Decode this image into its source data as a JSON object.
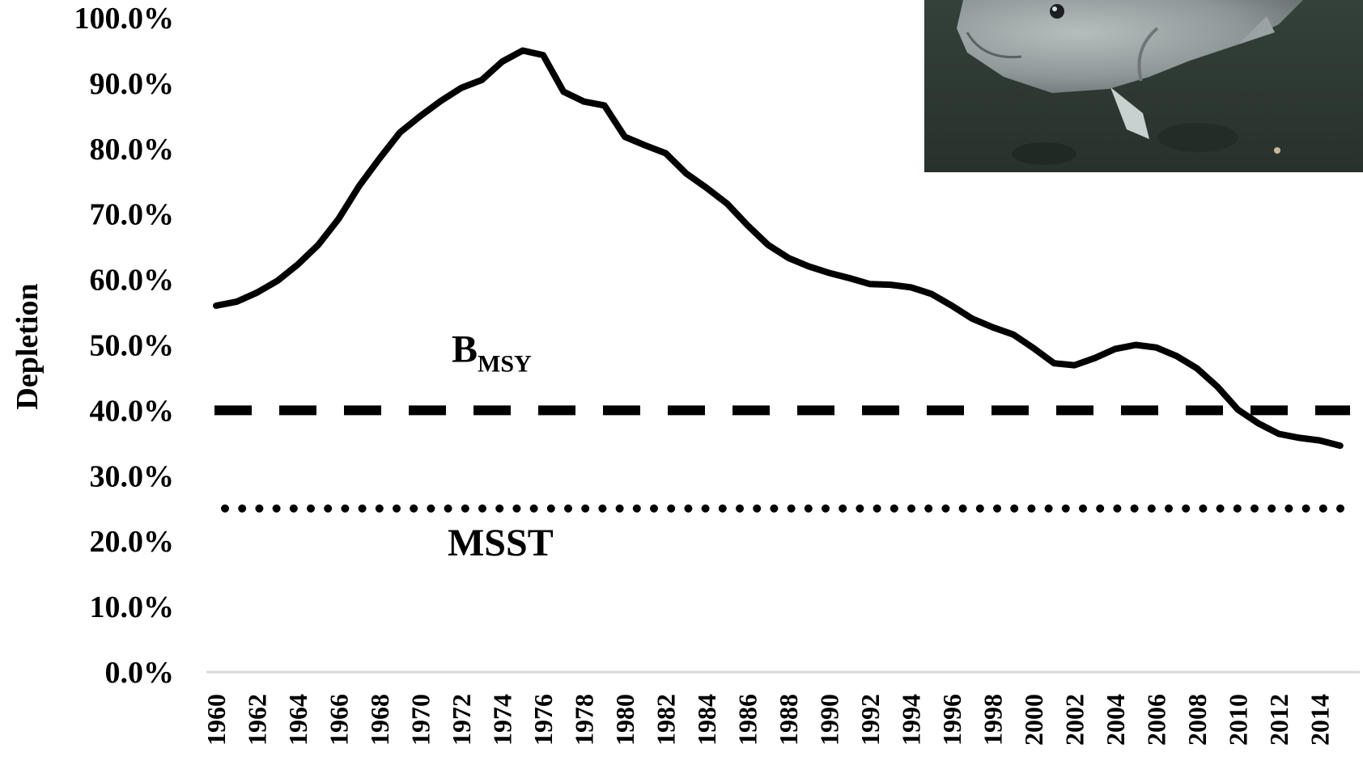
{
  "chart_data": {
    "type": "line",
    "ylabel": "Depletion",
    "xlabel": "",
    "ylim": [
      0,
      100
    ],
    "yticks": [
      "0.0%",
      "10.0%",
      "20.0%",
      "30.0%",
      "40.0%",
      "50.0%",
      "60.0%",
      "70.0%",
      "80.0%",
      "90.0%",
      "100.0%"
    ],
    "xticks": [
      "1960",
      "1962",
      "1964",
      "1966",
      "1968",
      "1970",
      "1972",
      "1974",
      "1976",
      "1978",
      "1980",
      "1982",
      "1984",
      "1986",
      "1988",
      "1990",
      "1992",
      "1994",
      "1996",
      "1998",
      "2000",
      "2002",
      "2004",
      "2006",
      "2008",
      "2010",
      "2012",
      "2014"
    ],
    "grid": false,
    "series": [
      {
        "x": [
          1960,
          1961,
          1962,
          1963,
          1964,
          1965,
          1966,
          1967,
          1968,
          1969,
          1970,
          1971,
          1972,
          1973,
          1974,
          1975,
          1976,
          1977,
          1978,
          1979,
          1980,
          1981,
          1982,
          1983,
          1984,
          1985,
          1986,
          1987,
          1988,
          1989,
          1990,
          1991,
          1992,
          1993,
          1994,
          1995,
          1996,
          1997,
          1998,
          1999,
          2000,
          2001,
          2002,
          2003,
          2004,
          2005,
          2006,
          2007,
          2008,
          2009,
          2010,
          2011,
          2012,
          2013,
          2014,
          2015
        ],
        "values": [
          56.0,
          56.6,
          58.0,
          59.8,
          62.3,
          65.3,
          69.3,
          74.3,
          78.5,
          82.5,
          85.0,
          87.3,
          89.3,
          90.5,
          93.3,
          95.0,
          94.3,
          88.7,
          87.2,
          86.6,
          81.8,
          80.5,
          79.3,
          76.2,
          74.0,
          71.6,
          68.3,
          65.3,
          63.3,
          62.0,
          61.0,
          60.2,
          59.3,
          59.2,
          58.8,
          57.8,
          56.0,
          54.0,
          52.7,
          51.6,
          49.5,
          47.2,
          46.9,
          48.0,
          49.4,
          50.0,
          49.6,
          48.3,
          46.4,
          43.6,
          40.1,
          38.0,
          36.4,
          35.8,
          35.4,
          34.6
        ]
      }
    ],
    "reference_lines": [
      {
        "label_main": "B",
        "label_sub": "MSY",
        "value": 40,
        "style": "dashed"
      },
      {
        "label_main": "MSST",
        "label_sub": "",
        "value": 25,
        "style": "dotted"
      }
    ]
  },
  "inset_image": {
    "icon": "fish-photo",
    "colors": {
      "water": "#2f3a33",
      "fish": "#8f9a9b"
    }
  }
}
